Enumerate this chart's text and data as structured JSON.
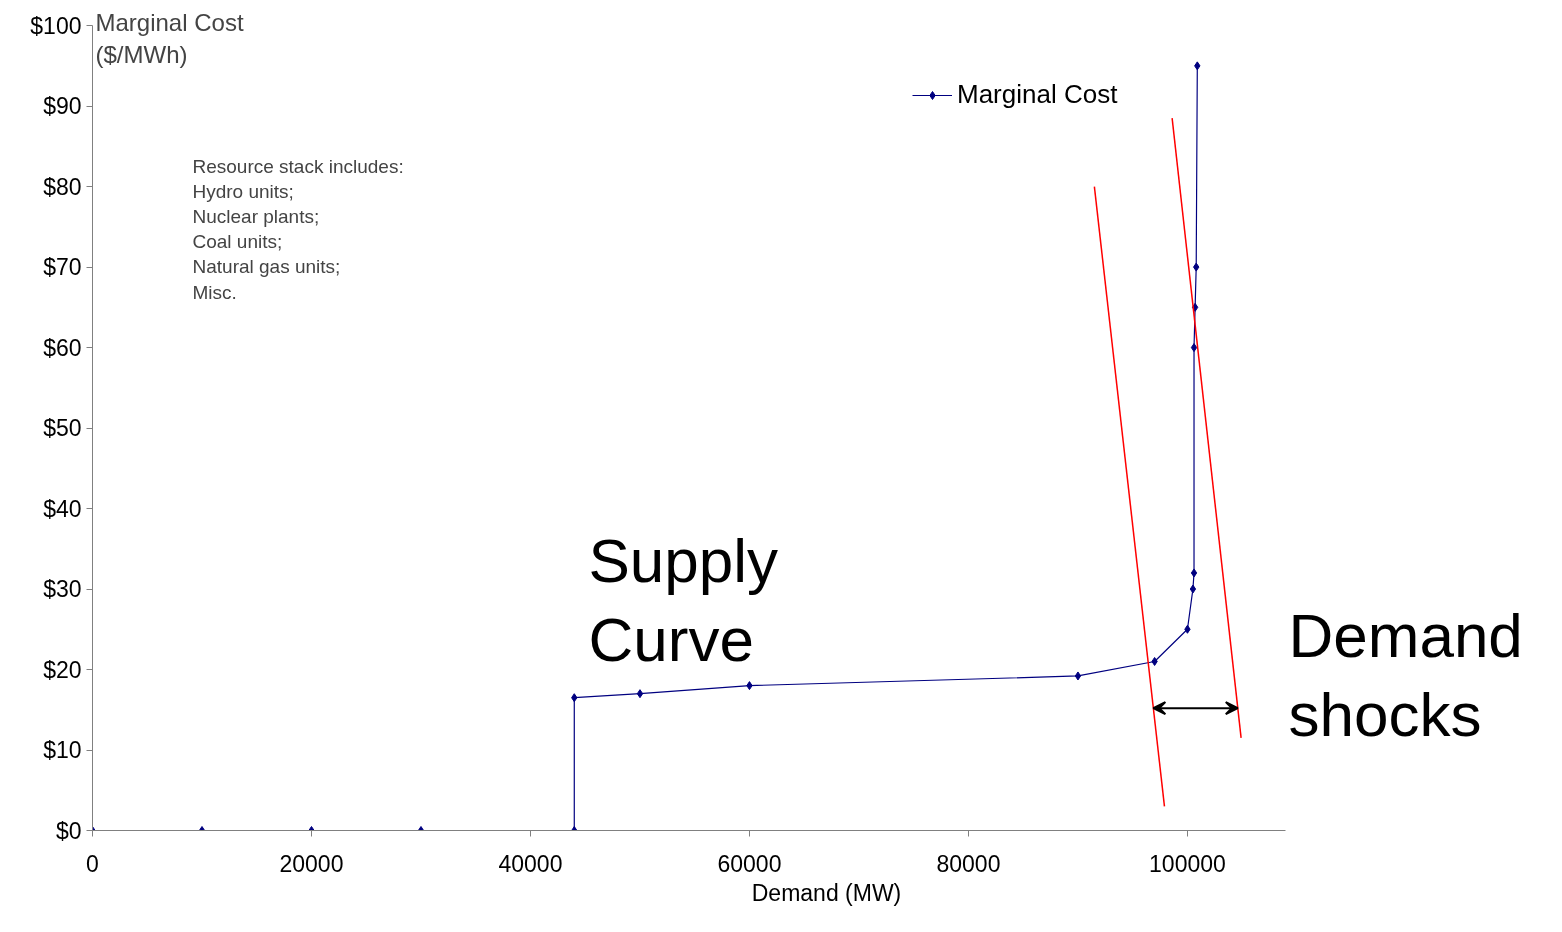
{
  "chart_data": {
    "type": "line",
    "xlabel": "Demand (MW)",
    "ylabel": "Marginal Cost ($/MWh)",
    "annotations": [
      "Resource stack includes:\nHydro units;\nNuclear plants;\nCoal units;\nNatural gas units;\nMisc.",
      "Supply Curve",
      "Demand shocks"
    ],
    "series": [
      {
        "name": "Marginal Cost",
        "color": "#000080",
        "marker": "diamond",
        "x": [
          0,
          10000,
          20000,
          30000,
          44000,
          44000,
          50000,
          60000,
          90000,
          97000,
          100000,
          100500,
          100600,
          100600,
          100700,
          100800,
          100900
        ],
        "values": [
          0,
          0,
          0,
          0,
          0,
          16.5,
          17,
          18,
          19.2,
          21,
          25,
          30,
          32,
          60,
          65,
          70,
          95
        ]
      },
      {
        "color": "#ff0000",
        "marker": "none",
        "x": [
          91500,
          97900
        ],
        "values": [
          80,
          3
        ]
      },
      {
        "color": "#ff0000",
        "marker": "none",
        "x": [
          98600,
          104900
        ],
        "values": [
          88.5,
          11.5
        ]
      }
    ],
    "xlim": [
      0,
      109000
    ],
    "ylim": [
      0,
      100
    ],
    "xticks": [
      0,
      20000,
      40000,
      60000,
      80000,
      100000
    ],
    "yticks": [
      {
        "value": 0,
        "label": "$0"
      },
      {
        "value": 10,
        "label": "$10"
      },
      {
        "value": 20,
        "label": "$20"
      },
      {
        "value": 30,
        "label": "$30"
      },
      {
        "value": 40,
        "label": "$40"
      },
      {
        "value": 50,
        "label": "$50"
      },
      {
        "value": 60,
        "label": "$60"
      },
      {
        "value": 70,
        "label": "$70"
      },
      {
        "value": 80,
        "label": "$80"
      },
      {
        "value": 90,
        "label": "$90"
      },
      {
        "value": 100,
        "label": "$100"
      }
    ],
    "grid": false,
    "legend": "top right"
  }
}
